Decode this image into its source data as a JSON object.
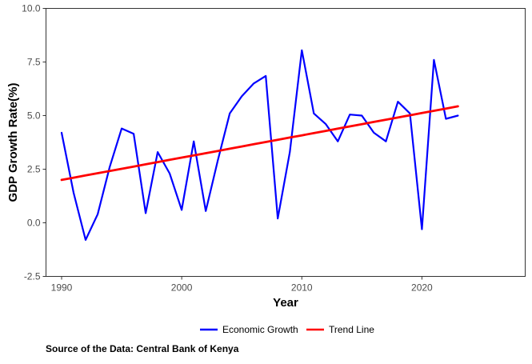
{
  "chart_data": {
    "type": "line",
    "title": "",
    "xlabel": "Year",
    "ylabel": "GDP Growth Rate(%)",
    "xlim": [
      1988.7,
      2028.6
    ],
    "ylim": [
      -2.5,
      10.0
    ],
    "x_ticks": [
      1990,
      2000,
      2010,
      2020
    ],
    "y_ticks": [
      -2.5,
      0.0,
      2.5,
      5.0,
      7.5,
      10.0
    ],
    "y_tick_labels": [
      "-2.5",
      "0.0",
      "2.5",
      "5.0",
      "7.5",
      "10.0"
    ],
    "grid": false,
    "legend_position": "bottom",
    "x": [
      1990,
      1991,
      1992,
      1993,
      1994,
      1995,
      1996,
      1997,
      1998,
      1999,
      2000,
      2001,
      2002,
      2003,
      2004,
      2005,
      2006,
      2007,
      2008,
      2009,
      2010,
      2011,
      2012,
      2013,
      2014,
      2015,
      2016,
      2017,
      2018,
      2019,
      2020,
      2021,
      2022,
      2023
    ],
    "series": [
      {
        "name": "Economic Growth",
        "color": "#0000ff",
        "values": [
          4.2,
          1.4,
          -0.8,
          0.4,
          2.6,
          4.4,
          4.15,
          0.45,
          3.3,
          2.3,
          0.6,
          3.8,
          0.55,
          2.9,
          5.1,
          5.9,
          6.5,
          6.85,
          0.2,
          3.3,
          8.05,
          5.1,
          4.6,
          3.8,
          5.05,
          5.0,
          4.2,
          3.8,
          5.65,
          5.1,
          -0.3,
          7.6,
          4.85,
          5.0
        ]
      },
      {
        "name": "Trend Line",
        "color": "#ff0000",
        "values": [
          2.0,
          2.104,
          2.208,
          2.312,
          2.416,
          2.52,
          2.624,
          2.728,
          2.832,
          2.936,
          3.04,
          3.144,
          3.248,
          3.352,
          3.456,
          3.56,
          3.664,
          3.768,
          3.872,
          3.976,
          4.08,
          4.184,
          4.288,
          4.392,
          4.496,
          4.6,
          4.704,
          4.808,
          4.912,
          5.016,
          5.12,
          5.224,
          5.328,
          5.432
        ]
      }
    ]
  },
  "caption": "Source of the Data: Central Bank of Kenya"
}
